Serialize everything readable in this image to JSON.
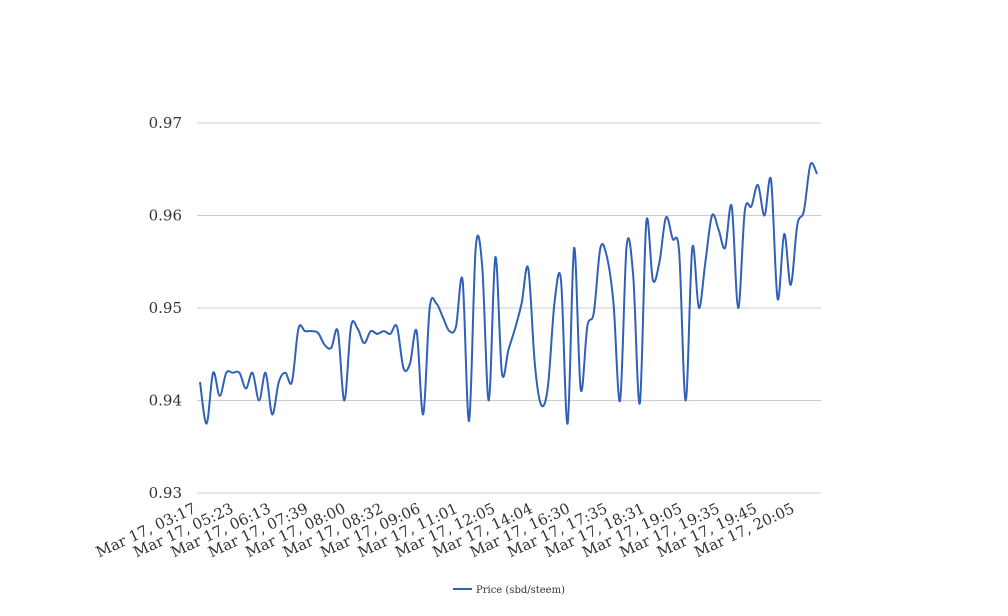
{
  "chart_data": {
    "type": "line",
    "title": "",
    "xlabel": "",
    "ylabel": "",
    "ylim": [
      0.93,
      0.97
    ],
    "yticks": [
      "0.93",
      "0.94",
      "0.95",
      "0.96",
      "0.97"
    ],
    "grid": true,
    "legend_position": "bottom",
    "x_tick_labels": [
      "Mar 17, 03:17",
      "Mar 17, 05:23",
      "Mar 17, 06:13",
      "Mar 17, 07:39",
      "Mar 17, 08:00",
      "Mar 17, 08:32",
      "Mar 17, 09:06",
      "Mar 17, 11:01",
      "Mar 17, 12:05",
      "Mar 17, 14:04",
      "Mar 17, 16:30",
      "Mar 17, 17:35",
      "Mar 17, 18:31",
      "Mar 17, 19:05",
      "Mar 17, 19:35",
      "Mar 17, 19:45",
      "Mar 17, 20:05"
    ],
    "series": [
      {
        "name": "Price (sbd/steem)",
        "color": "#3060b8",
        "values": [
          0.942,
          0.9375,
          0.943,
          0.9405,
          0.943,
          0.943,
          0.943,
          0.9413,
          0.943,
          0.94,
          0.943,
          0.9385,
          0.942,
          0.943,
          0.942,
          0.9478,
          0.9475,
          0.9475,
          0.9473,
          0.946,
          0.9457,
          0.9475,
          0.94,
          0.948,
          0.9478,
          0.9462,
          0.9475,
          0.9472,
          0.9475,
          0.9472,
          0.948,
          0.9435,
          0.944,
          0.9475,
          0.9385,
          0.95,
          0.9505,
          0.949,
          0.9475,
          0.948,
          0.953,
          0.9378,
          0.9565,
          0.9545,
          0.94,
          0.9555,
          0.943,
          0.9455,
          0.9478,
          0.9505,
          0.9543,
          0.944,
          0.9395,
          0.9415,
          0.9505,
          0.953,
          0.9375,
          0.9565,
          0.9412,
          0.948,
          0.9495,
          0.9565,
          0.9555,
          0.9505,
          0.94,
          0.9567,
          0.9535,
          0.9397,
          0.9593,
          0.953,
          0.955,
          0.9598,
          0.9575,
          0.956,
          0.94,
          0.9565,
          0.95,
          0.955,
          0.96,
          0.9585,
          0.9565,
          0.961,
          0.95,
          0.9605,
          0.961,
          0.9633,
          0.96,
          0.9638,
          0.951,
          0.958,
          0.9525,
          0.959,
          0.9605,
          0.9655,
          0.9645
        ]
      }
    ]
  }
}
